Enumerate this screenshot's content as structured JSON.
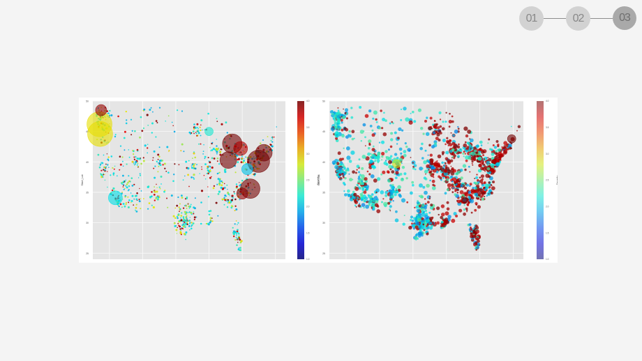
{
  "steps": [
    {
      "label": "01",
      "active": false
    },
    {
      "label": "02",
      "active": false
    },
    {
      "label": "03",
      "active": true
    }
  ],
  "chart_data": [
    {
      "type": "scatter",
      "title": "",
      "xlabel": "",
      "ylabel": "Start_Lat",
      "ylim": [
        24,
        50
      ],
      "yticks": [
        25,
        30,
        35,
        40,
        45,
        50
      ],
      "xlim": [
        -125,
        -67
      ],
      "grid": true,
      "colorbar": {
        "label": "Severity",
        "ticks": [
          "1.0",
          "1.5",
          "2.0",
          "2.5",
          "3.0",
          "3.5",
          "4.0"
        ],
        "range": [
          1,
          4
        ],
        "colormap": "jet"
      },
      "large_clusters": [
        {
          "lon": -123.0,
          "lat": 46.2,
          "size": 9,
          "severity": 2.9
        },
        {
          "lon": -122.8,
          "lat": 44.6,
          "size": 9,
          "severity": 2.9
        },
        {
          "lon": -122.5,
          "lat": 48.5,
          "size": 4,
          "severity": 3.9
        },
        {
          "lon": -118.2,
          "lat": 34.1,
          "size": 5,
          "severity": 2.1
        },
        {
          "lon": -90.0,
          "lat": 45.0,
          "size": 3,
          "severity": 2.2
        },
        {
          "lon": -83.0,
          "lat": 43.0,
          "size": 7,
          "severity": 4.0
        },
        {
          "lon": -84.2,
          "lat": 40.3,
          "size": 6,
          "severity": 4.0
        },
        {
          "lon": -75.1,
          "lat": 40.1,
          "size": 8,
          "severity": 4.0
        },
        {
          "lon": -73.5,
          "lat": 41.5,
          "size": 6,
          "severity": 4.0
        },
        {
          "lon": -77.6,
          "lat": 35.6,
          "size": 7,
          "severity": 4.0
        },
        {
          "lon": -80.5,
          "lat": 42.2,
          "size": 5,
          "severity": 3.8
        },
        {
          "lon": -78.5,
          "lat": 38.8,
          "size": 4,
          "severity": 2.0
        },
        {
          "lon": -80.0,
          "lat": 34.8,
          "size": 4,
          "severity": 3.9
        }
      ]
    },
    {
      "type": "scatter",
      "title": "",
      "xlabel": "",
      "ylabel": "Start_Lat",
      "ylim": [
        24,
        50
      ],
      "yticks": [
        25,
        30,
        35,
        40,
        45,
        50
      ],
      "xlim": [
        -125,
        -67
      ],
      "grid": true,
      "colorbar": {
        "label": "Severity",
        "ticks": [
          "1.0",
          "1.5",
          "2.0",
          "2.5",
          "3.0",
          "3.5",
          "4.0"
        ],
        "range": [
          1,
          4
        ],
        "colormap": "jet"
      },
      "large_clusters": [
        {
          "lon": -70.5,
          "lat": 43.8,
          "size": 3,
          "severity": 4.0
        },
        {
          "lon": -104.9,
          "lat": 39.7,
          "size": 3,
          "severity": 2.8
        },
        {
          "lon": -84.4,
          "lat": 33.7,
          "size": 2,
          "severity": 4.0
        }
      ]
    }
  ]
}
